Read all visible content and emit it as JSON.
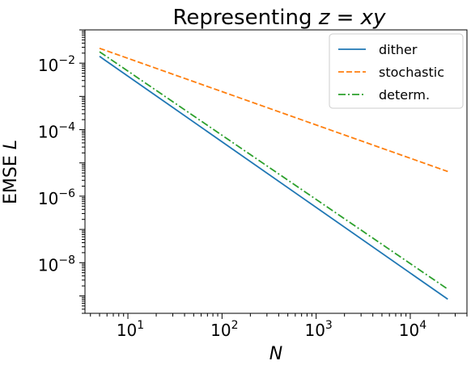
{
  "chart_data": {
    "type": "line",
    "title_prefix": "Representing ",
    "title_math": "z = xy",
    "xlabel": "N",
    "ylabel_prefix": "EMSE ",
    "ylabel_math": "L",
    "xscale": "log",
    "yscale": "log",
    "xlim": [
      3.5,
      40000
    ],
    "ylim": [
      3e-10,
      0.1
    ],
    "x_ticks": [
      {
        "value": 10,
        "base": "10",
        "exp": "1"
      },
      {
        "value": 100,
        "base": "10",
        "exp": "2"
      },
      {
        "value": 1000,
        "base": "10",
        "exp": "3"
      },
      {
        "value": 10000,
        "base": "10",
        "exp": "4"
      }
    ],
    "y_ticks": [
      {
        "value": 1e-08,
        "base": "10",
        "exp": "−8"
      },
      {
        "value": 1e-06,
        "base": "10",
        "exp": "−6"
      },
      {
        "value": 0.0001,
        "base": "10",
        "exp": "−4"
      },
      {
        "value": 0.01,
        "base": "10",
        "exp": "−2"
      }
    ],
    "grid": false,
    "legend_position": "top-right",
    "series": [
      {
        "name": "dither",
        "color": "#1f77b4",
        "style": "solid",
        "x": [
          5,
          25000
        ],
        "y": [
          0.016,
          8e-10
        ]
      },
      {
        "name": "stochastic",
        "color": "#ff7f0e",
        "style": "dashed",
        "x": [
          5,
          25000
        ],
        "y": [
          0.028,
          5.5e-06
        ]
      },
      {
        "name": "determ.",
        "color": "#2ca02c",
        "style": "dashdot",
        "x": [
          5,
          25000
        ],
        "y": [
          0.022,
          1.6e-09
        ]
      }
    ]
  }
}
